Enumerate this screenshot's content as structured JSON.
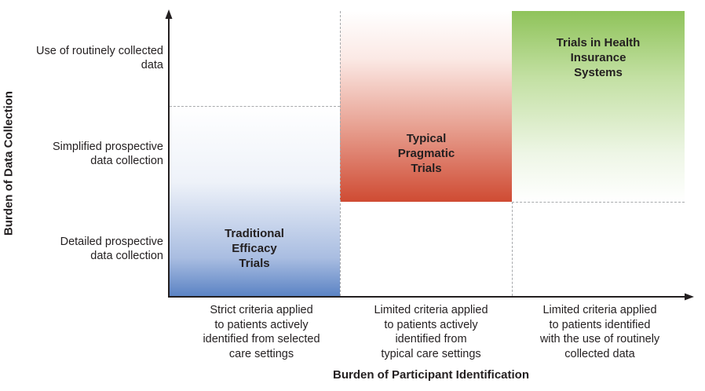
{
  "y_axis": {
    "title": "Burden of Data Collection",
    "levels": [
      {
        "line1": "Use of routinely collected",
        "line2": "data"
      },
      {
        "line1": "Simplified prospective",
        "line2": "data collection"
      },
      {
        "line1": "Detailed prospective",
        "line2": "data collection"
      }
    ]
  },
  "x_axis": {
    "title": "Burden of Participant Identification",
    "levels": [
      {
        "line1": "Strict criteria applied",
        "line2": "to patients actively",
        "line3": "identified from selected",
        "line4": "care settings"
      },
      {
        "line1": "Limited criteria applied",
        "line2": "to patients actively",
        "line3": "identified from",
        "line4": "typical care settings"
      },
      {
        "line1": "Limited criteria applied",
        "line2": "to patients identified",
        "line3": "with the use of routinely",
        "line4": "collected data"
      }
    ]
  },
  "boxes": [
    {
      "line1": "Traditional",
      "line2": "Efficacy",
      "line3": "Trials",
      "color": "#5b83c4"
    },
    {
      "line1": "Typical",
      "line2": "Pragmatic",
      "line3": "Trials",
      "color": "#cf4b33"
    },
    {
      "line1": "Trials in Health",
      "line2": "Insurance",
      "line3": "Systems",
      "color": "#8fc35a"
    }
  ]
}
